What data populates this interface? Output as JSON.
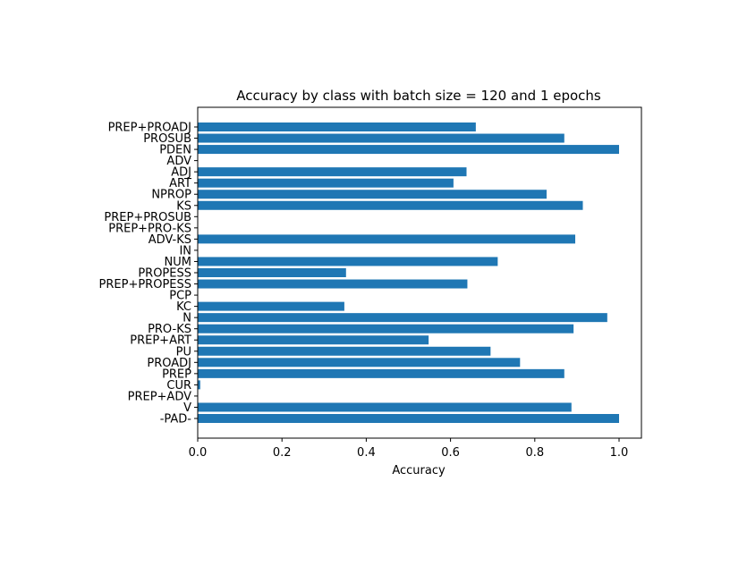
{
  "chart_data": {
    "type": "bar",
    "orientation": "horizontal",
    "title": "Accuracy by class with batch size = 120 and 1 epochs",
    "xlabel": "Accuracy",
    "ylabel": "",
    "xlim": [
      0,
      1.05
    ],
    "xticks": [
      "0.0",
      "0.2",
      "0.4",
      "0.6",
      "0.8",
      "1.0"
    ],
    "grid": false,
    "bar_color": "#1f77b4",
    "categories": [
      "-PAD-",
      "V",
      "PREP+ADV",
      "CUR",
      "PREP",
      "PROADJ",
      "PU",
      "PREP+ART",
      "PRO-KS",
      "N",
      "KC",
      "PCP",
      "PREP+PROPESS",
      "PROPESS",
      "NUM",
      "IN",
      "ADV-KS",
      "PREP+PRO-KS",
      "PREP+PROSUB",
      "KS",
      "NPROP",
      "ART",
      "ADJ",
      "ADV",
      "PDEN",
      "PROSUB",
      "PREP+PROADJ"
    ],
    "values": [
      1.0,
      0.887,
      0.0,
      0.006,
      0.87,
      0.765,
      0.695,
      0.548,
      0.892,
      0.972,
      0.348,
      0.0,
      0.64,
      0.352,
      0.712,
      0.0,
      0.896,
      0.0,
      0.0,
      0.914,
      0.828,
      0.607,
      0.638,
      0.0,
      1.0,
      0.87,
      0.66
    ]
  }
}
